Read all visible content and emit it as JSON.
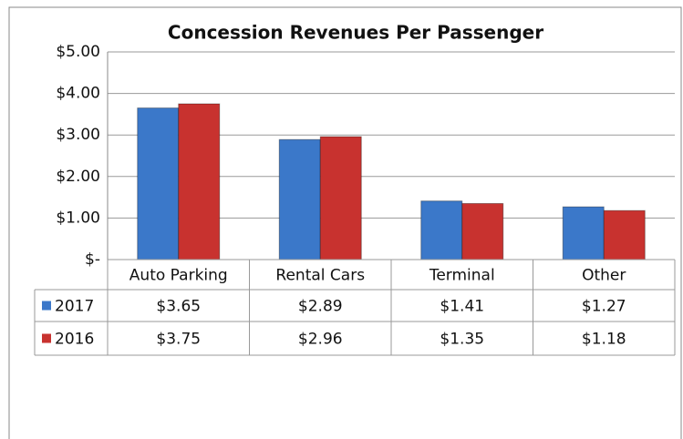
{
  "chart_data": {
    "type": "bar",
    "title": "Concession Revenues Per Passenger",
    "categories": [
      "Auto Parking",
      "Rental Cars",
      "Terminal",
      "Other"
    ],
    "series": [
      {
        "name": "2017",
        "color": "#3b78c9",
        "values": [
          3.65,
          2.89,
          1.41,
          1.27
        ],
        "value_labels": [
          "$3.65",
          "$2.89",
          "$1.41",
          "$1.27"
        ]
      },
      {
        "name": "2016",
        "color": "#c8322f",
        "values": [
          3.75,
          2.96,
          1.35,
          1.18
        ],
        "value_labels": [
          "$3.75",
          "$2.96",
          "$1.35",
          "$1.18"
        ]
      }
    ],
    "ylim": [
      0,
      5
    ],
    "yticks": [
      {
        "value": 0,
        "label": "$-"
      },
      {
        "value": 1,
        "label": "$1.00"
      },
      {
        "value": 2,
        "label": "$2.00"
      },
      {
        "value": 3,
        "label": "$3.00"
      },
      {
        "value": 4,
        "label": "$4.00"
      },
      {
        "value": 5,
        "label": "$5.00"
      }
    ],
    "grid": true
  }
}
